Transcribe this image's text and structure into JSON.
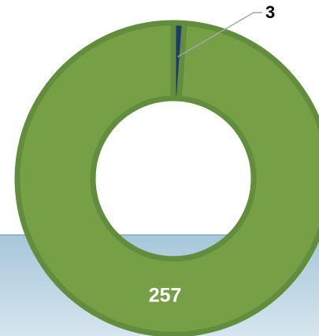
{
  "chart_data": {
    "type": "donut",
    "values": [
      3,
      257
    ],
    "colors": [
      "#1c3d6b",
      "#76a046"
    ]
  }
}
